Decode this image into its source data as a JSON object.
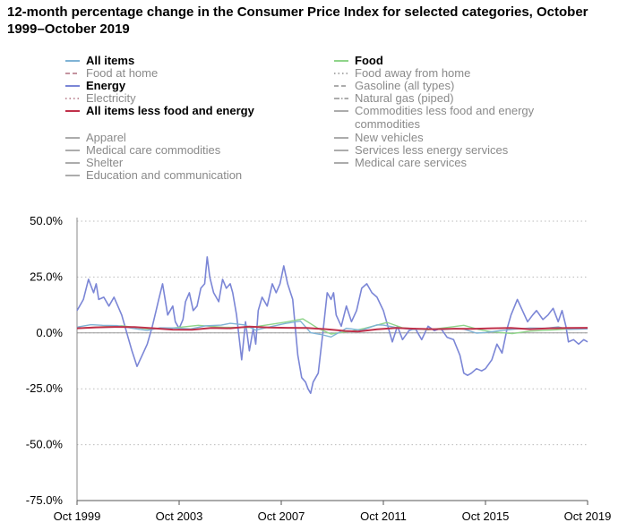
{
  "chart_data": {
    "type": "line",
    "title": "12-month percentage change in the Consumer Price Index for selected categories, October 1999–October 2019",
    "xlabel": "",
    "ylabel": "",
    "ylim": [
      -75,
      50
    ],
    "y_ticks": [
      "50.0%",
      "25.0%",
      "0.0%",
      "-25.0%",
      "-50.0%",
      "-75.0%"
    ],
    "y_tick_values": [
      50,
      25,
      0,
      -25,
      -50,
      -75
    ],
    "x_ticks": [
      "Oct 1999",
      "Oct 2003",
      "Oct 2007",
      "Oct 2011",
      "Oct 2015",
      "Oct 2019"
    ],
    "x_tick_years": [
      1999.75,
      2003.75,
      2007.75,
      2011.75,
      2015.75,
      2019.75
    ],
    "xlim": [
      1999.75,
      2019.75
    ],
    "grid": "horizontal-dotted",
    "legend_placement": "top",
    "legend": [
      {
        "label": "All items",
        "active": true,
        "color": "#7fb3d5",
        "dash": "solid"
      },
      {
        "label": "Food",
        "active": true,
        "color": "#8fd48a",
        "dash": "solid"
      },
      {
        "label": "Food at home",
        "active": false,
        "color": "#b07080",
        "dash": "dashed"
      },
      {
        "label": "Food away from home",
        "active": false,
        "color": "#909090",
        "dash": "dotted"
      },
      {
        "label": "Energy",
        "active": true,
        "color": "#7b86d6",
        "dash": "solid"
      },
      {
        "label": "Gasoline (all types)",
        "active": false,
        "color": "#909090",
        "dash": "dashed"
      },
      {
        "label": "Electricity",
        "active": false,
        "color": "#b07080",
        "dash": "dotted"
      },
      {
        "label": "Natural gas (piped)",
        "active": false,
        "color": "#909090",
        "dash": "dashdot"
      },
      {
        "label": "All items less food and energy",
        "active": true,
        "color": "#c0304a",
        "dash": "solid"
      },
      {
        "label": "Commodities less food and energy commodities",
        "active": false,
        "color": "#909090",
        "dash": "solid"
      },
      {
        "label": "Apparel",
        "active": false,
        "color": "#909090",
        "dash": "solid"
      },
      {
        "label": "New vehicles",
        "active": false,
        "color": "#909090",
        "dash": "solid"
      },
      {
        "label": "Medical care commodities",
        "active": false,
        "color": "#909090",
        "dash": "solid"
      },
      {
        "label": "Services less energy services",
        "active": false,
        "color": "#909090",
        "dash": "solid"
      },
      {
        "label": "Shelter",
        "active": false,
        "color": "#909090",
        "dash": "solid"
      },
      {
        "label": "Medical care services",
        "active": false,
        "color": "#909090",
        "dash": "solid"
      },
      {
        "label": "Education and communication",
        "active": false,
        "color": "#909090",
        "dash": "solid"
      }
    ],
    "series": [
      {
        "name": "Energy",
        "color": "#7b86d6",
        "width": 1.6,
        "x": [
          1999.75,
          1999.9,
          2000.0,
          2000.2,
          2000.4,
          2000.5,
          2000.6,
          2000.8,
          2001.0,
          2001.2,
          2001.5,
          2001.75,
          2001.9,
          2002.1,
          2002.3,
          2002.5,
          2002.7,
          2002.85,
          2002.95,
          2003.1,
          2003.3,
          2003.5,
          2003.6,
          2003.75,
          2003.9,
          2004.0,
          2004.15,
          2004.3,
          2004.45,
          2004.6,
          2004.75,
          2004.85,
          2004.95,
          2005.1,
          2005.3,
          2005.45,
          2005.6,
          2005.75,
          2005.85,
          2006.0,
          2006.2,
          2006.35,
          2006.5,
          2006.65,
          2006.75,
          2006.85,
          2007.0,
          2007.2,
          2007.4,
          2007.55,
          2007.7,
          2007.85,
          2008.0,
          2008.2,
          2008.4,
          2008.55,
          2008.7,
          2008.8,
          2008.9,
          2009.0,
          2009.2,
          2009.4,
          2009.55,
          2009.7,
          2009.8,
          2009.9,
          2010.1,
          2010.3,
          2010.5,
          2010.7,
          2010.9,
          2011.1,
          2011.3,
          2011.5,
          2011.75,
          2011.9,
          2012.1,
          2012.3,
          2012.5,
          2012.75,
          2013.0,
          2013.25,
          2013.5,
          2013.75,
          2014.0,
          2014.25,
          2014.5,
          2014.75,
          2014.9,
          2015.05,
          2015.2,
          2015.4,
          2015.6,
          2015.75,
          2016.0,
          2016.2,
          2016.4,
          2016.6,
          2016.75,
          2017.0,
          2017.2,
          2017.4,
          2017.6,
          2017.75,
          2018.0,
          2018.2,
          2018.4,
          2018.6,
          2018.75,
          2018.9,
          2019.0,
          2019.2,
          2019.4,
          2019.6,
          2019.75
        ],
        "values": [
          10,
          13,
          15,
          24,
          18,
          22,
          15,
          16,
          12,
          16,
          8,
          -2,
          -8,
          -15,
          -10,
          -5,
          3,
          10,
          15,
          22,
          8,
          12,
          5,
          2,
          6,
          14,
          18,
          10,
          12,
          20,
          22,
          34,
          25,
          18,
          14,
          24,
          20,
          22,
          18,
          8,
          -12,
          5,
          -8,
          2,
          -5,
          10,
          16,
          12,
          22,
          18,
          22,
          30,
          22,
          15,
          -10,
          -20,
          -22,
          -25,
          -27,
          -22,
          -18,
          2,
          18,
          15,
          18,
          8,
          3,
          12,
          5,
          10,
          20,
          22,
          18,
          16,
          10,
          4,
          -4,
          3,
          -3,
          1,
          2,
          -3,
          3,
          1,
          2,
          -2,
          -3,
          -10,
          -18,
          -19,
          -18,
          -16,
          -17,
          -16,
          -12,
          -5,
          -9,
          2,
          8,
          15,
          10,
          5,
          8,
          10,
          6,
          8,
          11,
          5,
          10,
          3,
          -4,
          -3,
          -5,
          -3,
          -4
        ]
      },
      {
        "name": "Food",
        "color": "#8fd48a",
        "width": 1.4,
        "x": [
          1999.75,
          2000.5,
          2001.5,
          2002.5,
          2003.5,
          2004.5,
          2005.5,
          2006.5,
          2007.5,
          2008.0,
          2008.6,
          2009.2,
          2009.7,
          2010.5,
          2011.0,
          2011.9,
          2012.5,
          2013.5,
          2014.5,
          2014.9,
          2015.5,
          2016.0,
          2016.8,
          2017.5,
          2018.5,
          2019.0,
          2019.75
        ],
        "values": [
          2.1,
          2.6,
          3.2,
          1.8,
          2.2,
          3.4,
          2.5,
          2.4,
          4.1,
          5.0,
          6.3,
          2.0,
          -0.5,
          0.8,
          2.0,
          4.7,
          2.3,
          1.4,
          2.8,
          3.4,
          1.5,
          0.5,
          -0.3,
          0.8,
          1.4,
          1.8,
          2.1
        ]
      },
      {
        "name": "All items",
        "color": "#7fb3d5",
        "width": 1.4,
        "x": [
          1999.75,
          2000.3,
          2000.75,
          2001.3,
          2001.9,
          2002.5,
          2003.0,
          2003.6,
          2004.2,
          2004.8,
          2005.4,
          2005.75,
          2006.3,
          2006.75,
          2007.3,
          2007.9,
          2008.5,
          2008.9,
          2009.3,
          2009.7,
          2010.3,
          2010.9,
          2011.5,
          2011.75,
          2012.3,
          2012.9,
          2013.5,
          2014.1,
          2014.6,
          2014.9,
          2015.4,
          2015.75,
          2016.3,
          2016.9,
          2017.5,
          2018.1,
          2018.6,
          2019.0,
          2019.75
        ],
        "values": [
          2.6,
          3.7,
          3.4,
          3.3,
          2.1,
          1.1,
          2.3,
          2.2,
          1.8,
          3.2,
          3.5,
          4.3,
          3.6,
          1.3,
          2.7,
          4.2,
          5.3,
          0.1,
          -0.7,
          -1.8,
          2.1,
          1.2,
          3.6,
          3.5,
          2.3,
          1.5,
          1.8,
          1.5,
          2.0,
          1.7,
          -0.1,
          0.2,
          1.0,
          1.7,
          2.2,
          2.1,
          2.7,
          1.6,
          1.8
        ]
      },
      {
        "name": "All items less food and energy",
        "color": "#c0304a",
        "width": 2.0,
        "x": [
          1999.75,
          2000.5,
          2001.25,
          2002.0,
          2002.75,
          2003.5,
          2004.25,
          2005.0,
          2005.75,
          2006.5,
          2007.25,
          2008.0,
          2008.75,
          2009.5,
          2010.25,
          2010.75,
          2011.5,
          2012.25,
          2013.0,
          2013.75,
          2014.5,
          2015.25,
          2016.0,
          2016.75,
          2017.5,
          2018.25,
          2019.0,
          2019.75
        ],
        "values": [
          2.1,
          2.5,
          2.7,
          2.6,
          2.1,
          1.5,
          1.4,
          2.2,
          2.1,
          2.8,
          2.4,
          2.3,
          2.2,
          1.7,
          0.9,
          0.6,
          1.6,
          2.2,
          1.9,
          1.7,
          1.9,
          1.8,
          2.1,
          2.2,
          1.7,
          2.1,
          2.2,
          2.3
        ]
      }
    ]
  }
}
